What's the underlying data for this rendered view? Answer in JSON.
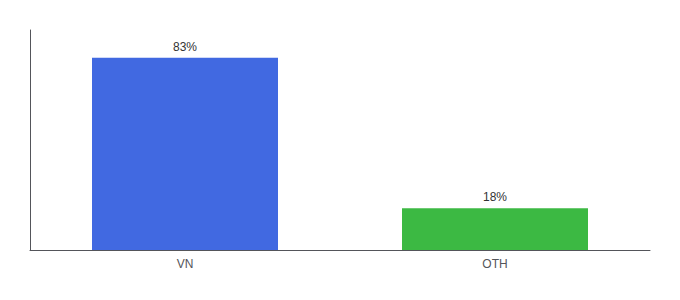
{
  "chart_data": {
    "type": "bar",
    "categories": [
      "VN",
      "OTH"
    ],
    "values": [
      83,
      18
    ],
    "value_labels": [
      "83%",
      "18%"
    ],
    "colors": [
      "#4169E1",
      "#3CB943"
    ],
    "ylim": [
      0,
      95
    ],
    "tick_labels": "x",
    "data_labels": true,
    "grid": false
  }
}
